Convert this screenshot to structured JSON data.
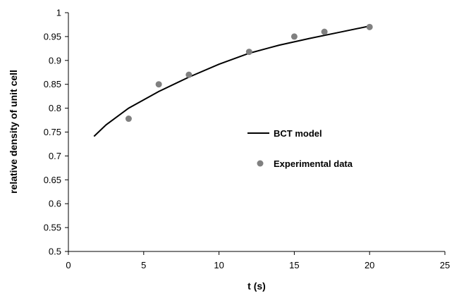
{
  "chart_data": {
    "type": "scatter",
    "title": "",
    "xlabel": "t (s)",
    "ylabel": "relative density of unit cell",
    "xlim": [
      0,
      25
    ],
    "ylim": [
      0.5,
      1
    ],
    "xticks": [
      "0",
      "5",
      "10",
      "15",
      "20",
      "25"
    ],
    "yticks": [
      "0.5",
      "0.55",
      "0.6",
      "0.65",
      "0.7",
      "0.75",
      "0.8",
      "0.85",
      "0.9",
      "0.95",
      "1"
    ],
    "grid": false,
    "legend_position": "inside-right",
    "series": [
      {
        "name": "BCT model",
        "kind": "line",
        "color": "#000000",
        "x": [
          1.7,
          2.5,
          4,
          6,
          8,
          10,
          12,
          14,
          16,
          18,
          20
        ],
        "y": [
          0.741,
          0.765,
          0.8,
          0.835,
          0.865,
          0.892,
          0.915,
          0.932,
          0.946,
          0.959,
          0.972
        ]
      },
      {
        "name": "Experimental data",
        "kind": "scatter",
        "color": "#808080",
        "x": [
          4,
          6,
          8,
          12,
          15,
          17,
          20
        ],
        "y": [
          0.778,
          0.85,
          0.87,
          0.918,
          0.95,
          0.96,
          0.97
        ]
      }
    ]
  }
}
